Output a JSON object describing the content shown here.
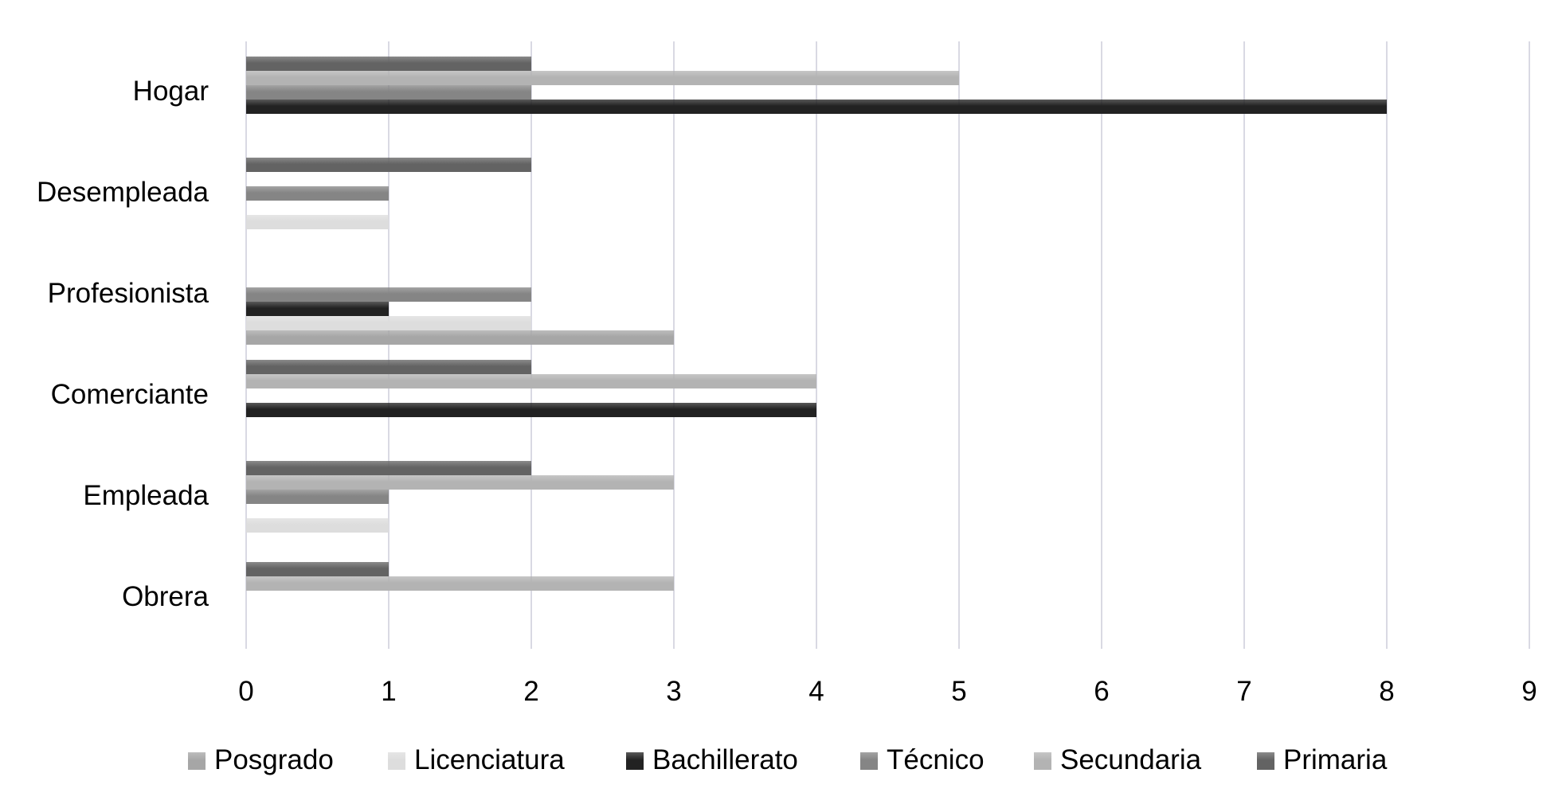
{
  "chart_data": {
    "type": "bar",
    "orientation": "horizontal",
    "title": "",
    "xlabel": "",
    "ylabel": "",
    "categories": [
      "Obrera",
      "Empleada",
      "Comerciante",
      "Profesionista",
      "Desempleada",
      "Hogar"
    ],
    "series": [
      {
        "name": "Posgrado",
        "values": [
          0,
          0,
          0,
          3,
          0,
          0
        ]
      },
      {
        "name": "Licenciatura",
        "values": [
          0,
          1,
          0,
          2,
          1,
          0
        ]
      },
      {
        "name": "Bachillerato",
        "values": [
          0,
          0,
          4,
          1,
          0,
          8
        ]
      },
      {
        "name": "Técnico",
        "values": [
          0,
          1,
          0,
          2,
          1,
          2
        ]
      },
      {
        "name": "Secundaria",
        "values": [
          3,
          3,
          4,
          0,
          0,
          5
        ]
      },
      {
        "name": "Primaria",
        "values": [
          1,
          2,
          2,
          0,
          2,
          2
        ]
      }
    ],
    "xlim": [
      0,
      9
    ],
    "x_ticks": [
      "0",
      "1",
      "2",
      "3",
      "4",
      "5",
      "6",
      "7",
      "8",
      "9"
    ],
    "grid": "vertical",
    "legend_position": "bottom"
  },
  "colors": {
    "Posgrado": "#a6a6a6",
    "Licenciatura": "#dddddd",
    "Bachillerato": "#222222",
    "Técnico": "#858585",
    "Secundaria": "#b3b3b3",
    "Primaria": "#636363",
    "gridline": "#d9d9e3"
  }
}
